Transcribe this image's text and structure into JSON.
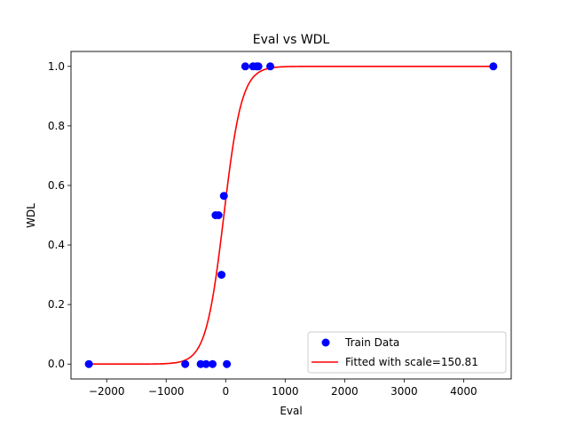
{
  "chart_data": {
    "type": "scatter",
    "title": "Eval vs WDL",
    "xlabel": "Eval",
    "ylabel": "WDL",
    "xlim": [
      -2600,
      4800
    ],
    "ylim": [
      -0.05,
      1.05
    ],
    "xticks": [
      -2000,
      -1000,
      0,
      1000,
      2000,
      3000,
      4000
    ],
    "yticks": [
      0.0,
      0.2,
      0.4,
      0.6,
      0.8,
      1.0
    ],
    "xtick_labels": [
      "−2000",
      "−1000",
      "0",
      "1000",
      "2000",
      "3000",
      "4000"
    ],
    "ytick_labels": [
      "0.0",
      "0.2",
      "0.4",
      "0.6",
      "0.8",
      "1.0"
    ],
    "grid": false,
    "legend_position": "lower-right",
    "series": [
      {
        "name": "Train Data",
        "kind": "scatter",
        "color": "#0000ff",
        "points": [
          {
            "x": -2300,
            "y": 0.0
          },
          {
            "x": -680,
            "y": 0.0
          },
          {
            "x": -420,
            "y": 0.0
          },
          {
            "x": -330,
            "y": 0.0
          },
          {
            "x": -220,
            "y": 0.0
          },
          {
            "x": 20,
            "y": 0.0
          },
          {
            "x": -170,
            "y": 0.5
          },
          {
            "x": -120,
            "y": 0.5
          },
          {
            "x": -70,
            "y": 0.3
          },
          {
            "x": -30,
            "y": 0.565
          },
          {
            "x": 330,
            "y": 1.0
          },
          {
            "x": 460,
            "y": 1.0
          },
          {
            "x": 520,
            "y": 1.0
          },
          {
            "x": 550,
            "y": 1.0
          },
          {
            "x": 750,
            "y": 1.0
          },
          {
            "x": 4500,
            "y": 1.0
          }
        ]
      },
      {
        "name": "Fitted with scale=150.81",
        "kind": "line",
        "color": "#ff0000",
        "function": "sigmoid",
        "scale": 150.81,
        "offset": -30,
        "x_range": [
          -2300,
          4500
        ]
      }
    ]
  }
}
